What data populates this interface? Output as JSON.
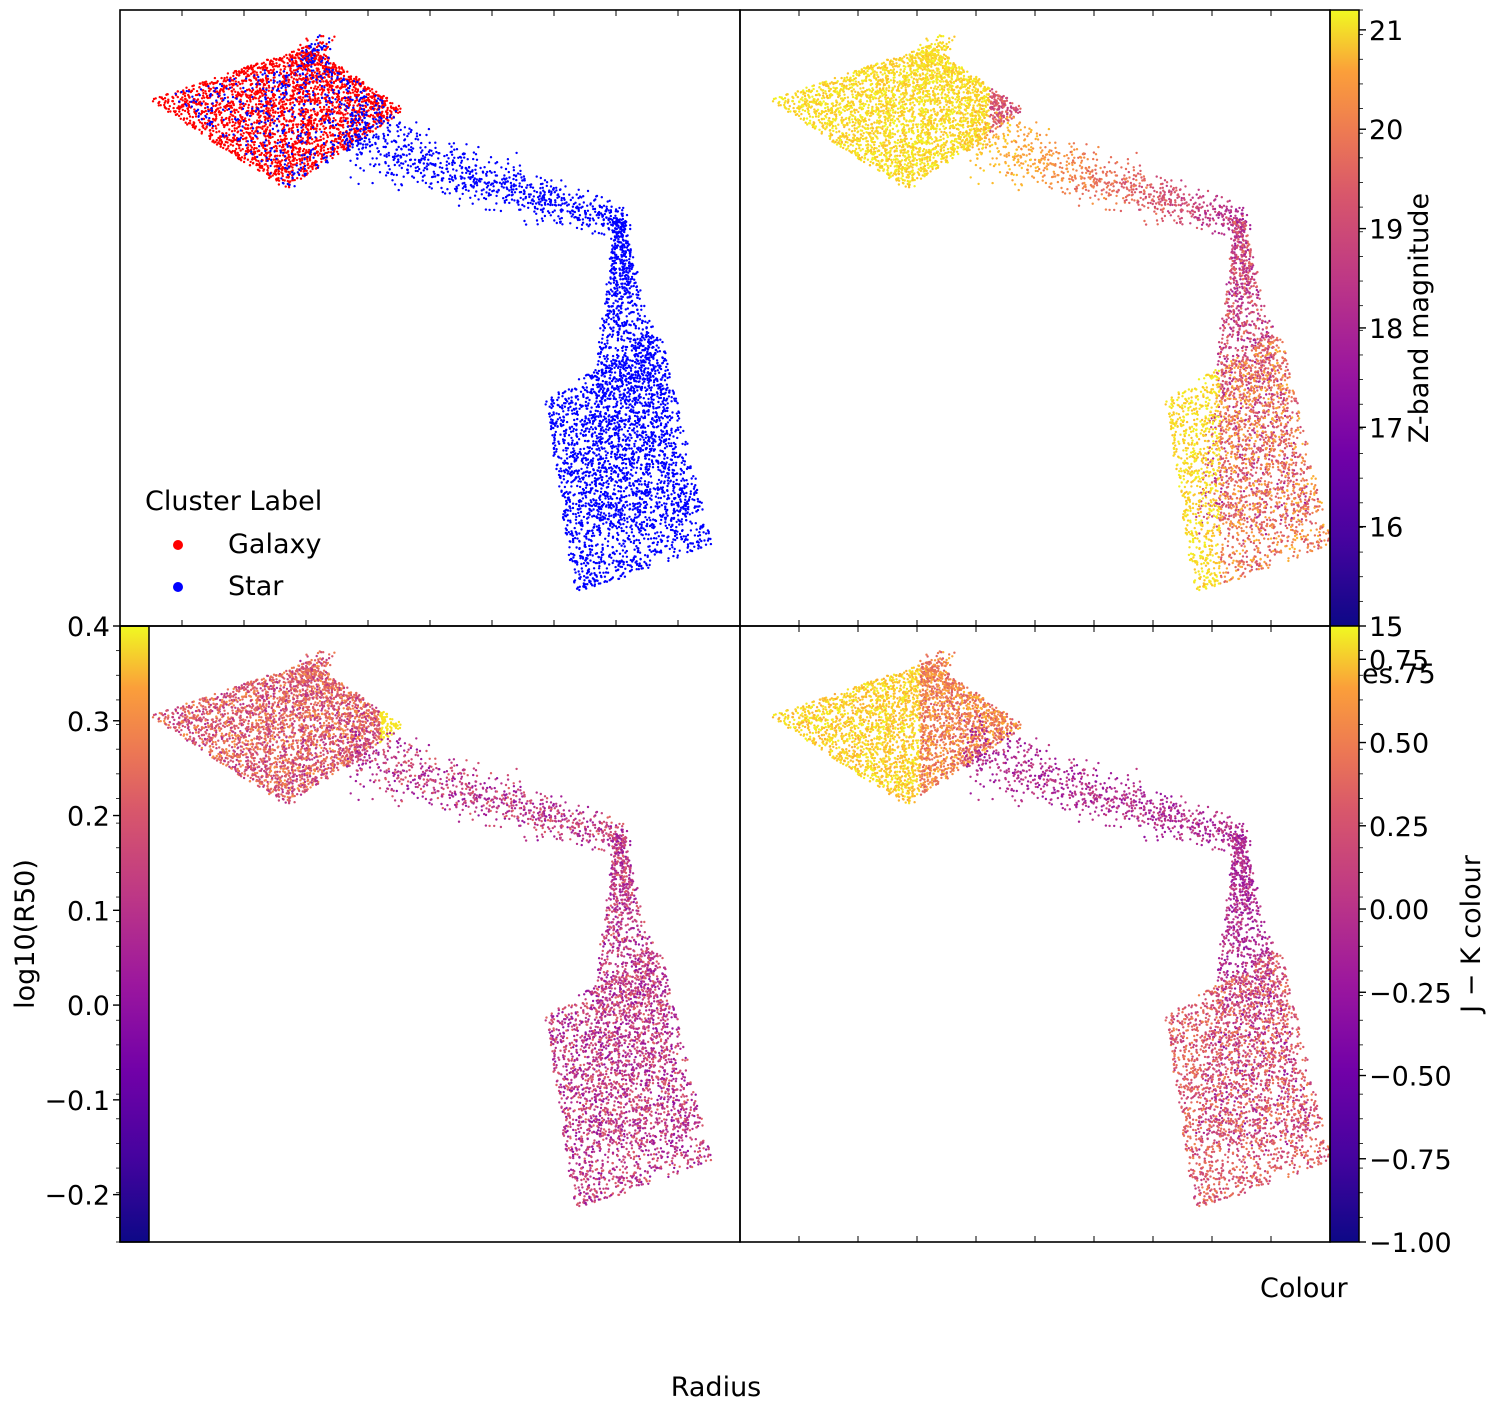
{
  "figure": {
    "xlabel": "Radius",
    "colour_label": "Colour",
    "overlap_label": "es.75"
  },
  "colors": {
    "galaxy": "#ff0000",
    "star": "#0000ff",
    "colormap": "plasma"
  },
  "chart_data": [
    {
      "panel": "top-left",
      "type": "scatter",
      "legend": {
        "title": "Cluster Label",
        "placement": "lower-left",
        "entries": [
          {
            "label": "Galaxy",
            "color": "#ff0000"
          },
          {
            "label": "Star",
            "color": "#0000ff"
          }
        ]
      },
      "series": [
        {
          "name": "Galaxy",
          "color": "#ff0000"
        },
        {
          "name": "Star",
          "color": "#0000ff"
        }
      ]
    },
    {
      "panel": "top-right",
      "type": "scatter",
      "colormap": "plasma",
      "colorbar": {
        "label": "Z-band magnitude",
        "range": [
          15,
          21.2
        ],
        "ticks": [
          "15",
          "16",
          "17",
          "18",
          "19",
          "20",
          "21"
        ]
      }
    },
    {
      "panel": "bottom-left",
      "type": "scatter",
      "colormap": "plasma",
      "ylabel": "log10(R50)",
      "ylim": [
        -0.25,
        0.4
      ],
      "yticks": [
        "0.4",
        "0.3",
        "0.2",
        "0.1",
        "0.0",
        "−0.1",
        "−0.2"
      ]
    },
    {
      "panel": "bottom-right",
      "type": "scatter",
      "colormap": "plasma",
      "colorbar": {
        "label": "J − K colour",
        "range": [
          -1.0,
          0.85
        ],
        "ticks": [
          "0.75",
          "0.50",
          "0.25",
          "0.00",
          "−0.25",
          "−0.50",
          "−0.75",
          "−1.00"
        ]
      }
    }
  ]
}
